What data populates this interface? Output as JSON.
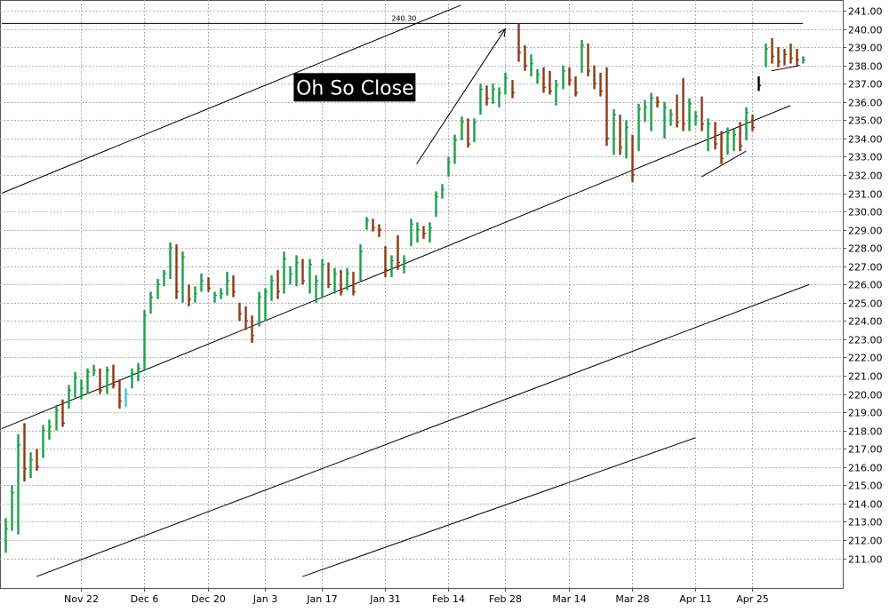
{
  "chart_data": {
    "type": "bar",
    "subtype": "ohlc",
    "title": "",
    "xlabel": "",
    "ylabel": "",
    "ylim": [
      210,
      241.5
    ],
    "y_axis_position": "right",
    "grid": true,
    "colors": {
      "up": "#1aa04a",
      "down": "#8b3a12",
      "highlight": "#40c8d0",
      "lines": "#000000",
      "grid": "#b0b0b0"
    },
    "y_ticks": [
      "211.00",
      "212.00",
      "213.00",
      "214.00",
      "215.00",
      "216.00",
      "217.00",
      "218.00",
      "219.00",
      "220.00",
      "221.00",
      "222.00",
      "223.00",
      "224.00",
      "225.00",
      "226.00",
      "227.00",
      "228.00",
      "229.00",
      "230.00",
      "231.00",
      "232.00",
      "233.00",
      "234.00",
      "235.00",
      "236.00",
      "237.00",
      "238.00",
      "239.00",
      "240.00",
      "241.00"
    ],
    "x_ticks": [
      {
        "label": "Nov 22",
        "index": 12
      },
      {
        "label": "Dec 6",
        "index": 22
      },
      {
        "label": "Dec 20",
        "index": 32
      },
      {
        "label": "Jan 3",
        "index": 41
      },
      {
        "label": "Jan 17",
        "index": 50
      },
      {
        "label": "Jan 31",
        "index": 60
      },
      {
        "label": "Feb 14",
        "index": 70
      },
      {
        "label": "Feb 28",
        "index": 79
      },
      {
        "label": "Mar 14",
        "index": 89
      },
      {
        "label": "Mar 28",
        "index": 99
      },
      {
        "label": "Apr 11",
        "index": 109
      },
      {
        "label": "Apr 25",
        "index": 118
      }
    ],
    "x_range": [
      -0.5,
      126
    ],
    "bars": [
      {
        "l": 211.3,
        "h": 213.2,
        "c": 212.6,
        "d": "up"
      },
      {
        "l": 212.5,
        "h": 215.0,
        "c": 214.6,
        "d": "up"
      },
      {
        "l": 212.3,
        "h": 217.8,
        "c": 217.2,
        "d": "up"
      },
      {
        "l": 215.2,
        "h": 218.4,
        "c": 215.9,
        "d": "down"
      },
      {
        "l": 215.4,
        "h": 216.8,
        "c": 216.4,
        "d": "up"
      },
      {
        "l": 215.8,
        "h": 217.0,
        "c": 216.0,
        "d": "down"
      },
      {
        "l": 216.5,
        "h": 218.3,
        "c": 218.0,
        "d": "up"
      },
      {
        "l": 217.5,
        "h": 218.6,
        "c": 218.2,
        "d": "up"
      },
      {
        "l": 218.0,
        "h": 219.4,
        "c": 219.1,
        "d": "up"
      },
      {
        "l": 218.2,
        "h": 219.7,
        "c": 218.4,
        "d": "down"
      },
      {
        "l": 219.2,
        "h": 220.5,
        "c": 220.2,
        "d": "up"
      },
      {
        "l": 219.8,
        "h": 221.2,
        "c": 220.9,
        "d": "up"
      },
      {
        "l": 219.7,
        "h": 220.8,
        "c": 220.3,
        "d": "up"
      },
      {
        "l": 220.0,
        "h": 221.4,
        "c": 221.2,
        "d": "up"
      },
      {
        "l": 221.0,
        "h": 221.6,
        "c": 221.3,
        "d": "up"
      },
      {
        "l": 220.0,
        "h": 221.4,
        "c": 220.2,
        "d": "down"
      },
      {
        "l": 220.0,
        "h": 221.5,
        "c": 221.3,
        "d": "up"
      },
      {
        "l": 220.3,
        "h": 221.6,
        "c": 220.5,
        "d": "down"
      },
      {
        "l": 219.2,
        "h": 220.8,
        "c": 219.6,
        "d": "down"
      },
      {
        "l": 219.3,
        "h": 220.3,
        "c": 220.0,
        "d": "highlight"
      },
      {
        "l": 220.3,
        "h": 221.4,
        "c": 221.1,
        "d": "up"
      },
      {
        "l": 220.7,
        "h": 221.7,
        "c": 221.4,
        "d": "up"
      },
      {
        "l": 221.3,
        "h": 224.6,
        "c": 224.3,
        "d": "up"
      },
      {
        "l": 224.4,
        "h": 225.6,
        "c": 225.3,
        "d": "up"
      },
      {
        "l": 225.2,
        "h": 226.3,
        "c": 226.0,
        "d": "up"
      },
      {
        "l": 225.9,
        "h": 226.8,
        "c": 226.6,
        "d": "up"
      },
      {
        "l": 226.3,
        "h": 228.3,
        "c": 228.0,
        "d": "up"
      },
      {
        "l": 225.2,
        "h": 228.2,
        "c": 225.6,
        "d": "down"
      },
      {
        "l": 225.0,
        "h": 227.8,
        "c": 227.5,
        "d": "up"
      },
      {
        "l": 224.8,
        "h": 226.0,
        "c": 225.2,
        "d": "down"
      },
      {
        "l": 225.0,
        "h": 225.9,
        "c": 225.5,
        "d": "up"
      },
      {
        "l": 225.6,
        "h": 226.6,
        "c": 226.2,
        "d": "up"
      },
      {
        "l": 225.6,
        "h": 226.4,
        "c": 225.8,
        "d": "down"
      },
      {
        "l": 225.0,
        "h": 225.6,
        "c": 225.4,
        "d": "up"
      },
      {
        "l": 225.2,
        "h": 225.8,
        "c": 225.5,
        "d": "up"
      },
      {
        "l": 225.4,
        "h": 226.7,
        "c": 226.2,
        "d": "up"
      },
      {
        "l": 225.3,
        "h": 226.5,
        "c": 225.6,
        "d": "down"
      },
      {
        "l": 224.0,
        "h": 225.0,
        "c": 224.4,
        "d": "down"
      },
      {
        "l": 223.5,
        "h": 224.8,
        "c": 224.0,
        "d": "down"
      },
      {
        "l": 222.8,
        "h": 224.3,
        "c": 223.2,
        "d": "down"
      },
      {
        "l": 223.7,
        "h": 225.6,
        "c": 225.3,
        "d": "up"
      },
      {
        "l": 224.0,
        "h": 225.8,
        "c": 225.6,
        "d": "up"
      },
      {
        "l": 225.1,
        "h": 226.5,
        "c": 226.2,
        "d": "up"
      },
      {
        "l": 225.2,
        "h": 226.8,
        "c": 225.6,
        "d": "down"
      },
      {
        "l": 225.5,
        "h": 227.8,
        "c": 227.4,
        "d": "up"
      },
      {
        "l": 226.0,
        "h": 227.0,
        "c": 226.6,
        "d": "up"
      },
      {
        "l": 225.9,
        "h": 227.6,
        "c": 227.2,
        "d": "up"
      },
      {
        "l": 226.0,
        "h": 227.4,
        "c": 226.2,
        "d": "down"
      },
      {
        "l": 225.5,
        "h": 227.4,
        "c": 227.1,
        "d": "up"
      },
      {
        "l": 225.0,
        "h": 226.5,
        "c": 226.2,
        "d": "up"
      },
      {
        "l": 225.3,
        "h": 227.4,
        "c": 227.1,
        "d": "up"
      },
      {
        "l": 225.8,
        "h": 227.2,
        "c": 226.0,
        "d": "down"
      },
      {
        "l": 225.5,
        "h": 226.9,
        "c": 226.6,
        "d": "up"
      },
      {
        "l": 225.4,
        "h": 226.8,
        "c": 225.6,
        "d": "down"
      },
      {
        "l": 225.7,
        "h": 226.9,
        "c": 226.6,
        "d": "up"
      },
      {
        "l": 225.4,
        "h": 226.7,
        "c": 225.6,
        "d": "down"
      },
      {
        "l": 226.2,
        "h": 228.2,
        "c": 227.8,
        "d": "up"
      },
      {
        "l": 229.0,
        "h": 229.7,
        "c": 229.5,
        "d": "up"
      },
      {
        "l": 228.9,
        "h": 229.6,
        "c": 229.1,
        "d": "down"
      },
      {
        "l": 228.6,
        "h": 229.3,
        "c": 229.0,
        "d": "down"
      },
      {
        "l": 226.4,
        "h": 228.1,
        "c": 226.8,
        "d": "down"
      },
      {
        "l": 226.4,
        "h": 227.6,
        "c": 227.3,
        "d": "up"
      },
      {
        "l": 226.8,
        "h": 228.7,
        "c": 227.2,
        "d": "down"
      },
      {
        "l": 226.6,
        "h": 227.6,
        "c": 227.3,
        "d": "up"
      },
      {
        "l": 228.1,
        "h": 229.6,
        "c": 229.3,
        "d": "up"
      },
      {
        "l": 228.3,
        "h": 229.4,
        "c": 229.0,
        "d": "up"
      },
      {
        "l": 228.5,
        "h": 229.2,
        "c": 228.8,
        "d": "down"
      },
      {
        "l": 228.3,
        "h": 229.4,
        "c": 229.1,
        "d": "up"
      },
      {
        "l": 229.7,
        "h": 231.1,
        "c": 230.8,
        "d": "up"
      },
      {
        "l": 230.7,
        "h": 231.5,
        "c": 231.2,
        "d": "up"
      },
      {
        "l": 231.9,
        "h": 233.0,
        "c": 232.7,
        "d": "up"
      },
      {
        "l": 232.6,
        "h": 234.2,
        "c": 233.9,
        "d": "up"
      },
      {
        "l": 233.9,
        "h": 235.2,
        "c": 234.9,
        "d": "up"
      },
      {
        "l": 233.5,
        "h": 235.1,
        "c": 233.7,
        "d": "down"
      },
      {
        "l": 233.8,
        "h": 235.1,
        "c": 234.9,
        "d": "up"
      },
      {
        "l": 235.3,
        "h": 237.0,
        "c": 236.7,
        "d": "up"
      },
      {
        "l": 235.8,
        "h": 236.9,
        "c": 236.2,
        "d": "down"
      },
      {
        "l": 235.9,
        "h": 237.0,
        "c": 236.7,
        "d": "up"
      },
      {
        "l": 235.7,
        "h": 236.8,
        "c": 236.5,
        "d": "up"
      },
      {
        "l": 236.4,
        "h": 237.6,
        "c": 237.3,
        "d": "up"
      },
      {
        "l": 236.2,
        "h": 237.2,
        "c": 236.5,
        "d": "down"
      },
      {
        "l": 238.2,
        "h": 240.3,
        "c": 238.7,
        "d": "down"
      },
      {
        "l": 237.7,
        "h": 239.1,
        "c": 238.0,
        "d": "down"
      },
      {
        "l": 237.4,
        "h": 238.6,
        "c": 238.1,
        "d": "up"
      },
      {
        "l": 237.0,
        "h": 237.8,
        "c": 237.5,
        "d": "up"
      },
      {
        "l": 236.5,
        "h": 237.9,
        "c": 236.8,
        "d": "down"
      },
      {
        "l": 236.4,
        "h": 237.7,
        "c": 236.6,
        "d": "down"
      },
      {
        "l": 235.8,
        "h": 237.2,
        "c": 236.9,
        "d": "up"
      },
      {
        "l": 236.7,
        "h": 238.0,
        "c": 237.7,
        "d": "up"
      },
      {
        "l": 236.9,
        "h": 237.9,
        "c": 237.2,
        "d": "down"
      },
      {
        "l": 236.3,
        "h": 237.4,
        "c": 236.5,
        "d": "down"
      },
      {
        "l": 237.6,
        "h": 239.4,
        "c": 239.1,
        "d": "up"
      },
      {
        "l": 237.4,
        "h": 239.2,
        "c": 237.7,
        "d": "down"
      },
      {
        "l": 236.7,
        "h": 238.0,
        "c": 237.0,
        "d": "down"
      },
      {
        "l": 236.3,
        "h": 237.6,
        "c": 236.6,
        "d": "down"
      },
      {
        "l": 233.6,
        "h": 237.9,
        "c": 234.0,
        "d": "down"
      },
      {
        "l": 233.1,
        "h": 235.6,
        "c": 235.3,
        "d": "up"
      },
      {
        "l": 233.1,
        "h": 235.3,
        "c": 233.5,
        "d": "down"
      },
      {
        "l": 232.9,
        "h": 235.0,
        "c": 234.6,
        "d": "up"
      },
      {
        "l": 231.6,
        "h": 234.2,
        "c": 232.0,
        "d": "down"
      },
      {
        "l": 233.3,
        "h": 235.9,
        "c": 235.6,
        "d": "up"
      },
      {
        "l": 234.9,
        "h": 236.1,
        "c": 235.7,
        "d": "up"
      },
      {
        "l": 234.4,
        "h": 236.5,
        "c": 236.2,
        "d": "up"
      },
      {
        "l": 235.7,
        "h": 236.3,
        "c": 236.0,
        "d": "down"
      },
      {
        "l": 234.0,
        "h": 236.0,
        "c": 235.7,
        "d": "up"
      },
      {
        "l": 234.7,
        "h": 235.6,
        "c": 235.3,
        "d": "up"
      },
      {
        "l": 234.6,
        "h": 236.4,
        "c": 234.9,
        "d": "down"
      },
      {
        "l": 234.4,
        "h": 237.3,
        "c": 234.8,
        "d": "down"
      },
      {
        "l": 234.4,
        "h": 236.2,
        "c": 235.9,
        "d": "up"
      },
      {
        "l": 234.7,
        "h": 235.5,
        "c": 235.2,
        "d": "up"
      },
      {
        "l": 234.4,
        "h": 236.3,
        "c": 234.8,
        "d": "down"
      },
      {
        "l": 233.3,
        "h": 235.1,
        "c": 234.8,
        "d": "up"
      },
      {
        "l": 233.4,
        "h": 234.9,
        "c": 233.7,
        "d": "down"
      },
      {
        "l": 232.6,
        "h": 234.4,
        "c": 232.9,
        "d": "down"
      },
      {
        "l": 233.1,
        "h": 234.6,
        "c": 234.3,
        "d": "up"
      },
      {
        "l": 233.3,
        "h": 234.5,
        "c": 234.2,
        "d": "up"
      },
      {
        "l": 233.3,
        "h": 234.9,
        "c": 233.6,
        "d": "down"
      },
      {
        "l": 233.9,
        "h": 235.7,
        "c": 235.4,
        "d": "up"
      },
      {
        "l": 234.4,
        "h": 235.3,
        "c": 234.6,
        "d": "down"
      },
      {
        "l": 236.6,
        "h": 237.4,
        "c": 236.9,
        "d": "black"
      },
      {
        "l": 237.9,
        "h": 239.2,
        "c": 238.9,
        "d": "up"
      },
      {
        "l": 238.1,
        "h": 239.5,
        "c": 238.5,
        "d": "down"
      },
      {
        "l": 237.9,
        "h": 239.0,
        "c": 238.2,
        "d": "down"
      },
      {
        "l": 238.0,
        "h": 238.9,
        "c": 238.6,
        "d": "down"
      },
      {
        "l": 238.1,
        "h": 239.2,
        "c": 238.4,
        "d": "down"
      },
      {
        "l": 238.0,
        "h": 238.9,
        "c": 238.3,
        "d": "down"
      },
      {
        "l": 238.1,
        "h": 238.5,
        "c": 238.3,
        "d": "up"
      }
    ],
    "lines": [
      {
        "name": "channel-top",
        "from": [
          -0.5,
          231.0
        ],
        "to": [
          72,
          241.3
        ]
      },
      {
        "name": "channel-mid",
        "from": [
          -0.5,
          218.1
        ],
        "to": [
          124,
          235.8
        ]
      },
      {
        "name": "channel-lower",
        "from": [
          5,
          210.0
        ],
        "to": [
          127,
          226.0
        ]
      },
      {
        "name": "channel-bottom",
        "from": [
          47,
          210.0
        ],
        "to": [
          109,
          217.6
        ]
      },
      {
        "name": "arrow",
        "from": [
          65,
          232.6
        ],
        "to": [
          79,
          240.0
        ]
      },
      {
        "name": "support-short",
        "from": [
          110,
          231.9
        ],
        "to": [
          117,
          233.3
        ]
      },
      {
        "name": "support-recent",
        "from": [
          121,
          237.7
        ],
        "to": [
          125.5,
          238.0
        ]
      },
      {
        "name": "high-line",
        "from": [
          -0.5,
          240.3
        ],
        "to": [
          126,
          240.3
        ]
      }
    ],
    "annotations": [
      {
        "text": "240.30",
        "x": 63,
        "y": 240.3
      },
      {
        "text": "Oh So Close",
        "x": 55,
        "y": 236.8
      }
    ]
  }
}
